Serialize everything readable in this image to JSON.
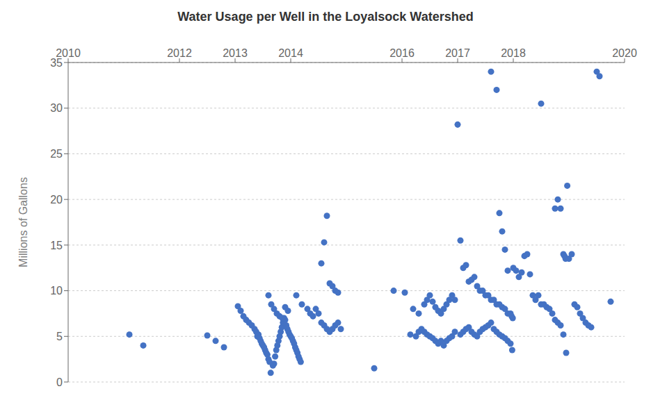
{
  "chart_data": {
    "type": "scatter",
    "title": "Water Usage per Well in the Loyalsock Watershed",
    "ylabel": "Millions of Gallons",
    "xlim": [
      2010,
      2020
    ],
    "ylim": [
      0,
      35
    ],
    "xticks": [
      2010,
      2012,
      2013,
      2014,
      2016,
      2017,
      2018,
      2020
    ],
    "yticks": [
      0,
      5,
      10,
      15,
      20,
      25,
      30,
      35
    ],
    "color": "#4472C4",
    "grid": "y",
    "x": [
      2011.1,
      2011.35,
      2012.5,
      2012.65,
      2012.8,
      2013.05,
      2013.1,
      2013.15,
      2013.2,
      2013.25,
      2013.3,
      2013.35,
      2013.38,
      2013.4,
      2013.42,
      2013.44,
      2013.46,
      2013.48,
      2013.5,
      2013.52,
      2013.54,
      2013.56,
      2013.58,
      2013.6,
      2013.62,
      2013.64,
      2013.68,
      2013.7,
      2013.72,
      2013.74,
      2013.76,
      2013.78,
      2013.8,
      2013.82,
      2013.84,
      2013.86,
      2013.88,
      2013.9,
      2013.92,
      2013.94,
      2013.96,
      2013.98,
      2014.0,
      2014.02,
      2014.04,
      2014.06,
      2014.08,
      2014.1,
      2014.12,
      2014.14,
      2014.16,
      2014.18,
      2013.6,
      2013.65,
      2013.7,
      2013.75,
      2013.8,
      2013.85,
      2013.9,
      2013.95,
      2014.1,
      2014.2,
      2014.3,
      2014.35,
      2014.4,
      2014.45,
      2014.5,
      2014.55,
      2014.6,
      2014.65,
      2014.7,
      2014.75,
      2014.8,
      2014.85,
      2014.55,
      2014.6,
      2014.65,
      2014.7,
      2014.75,
      2014.8,
      2014.85,
      2014.9,
      2015.5,
      2015.85,
      2016.05,
      2016.2,
      2016.3,
      2016.4,
      2016.45,
      2016.5,
      2016.55,
      2016.6,
      2016.65,
      2016.7,
      2016.75,
      2016.8,
      2016.85,
      2016.9,
      2016.95,
      2016.15,
      2016.25,
      2016.3,
      2016.35,
      2016.4,
      2016.45,
      2016.5,
      2016.55,
      2016.6,
      2016.65,
      2016.7,
      2016.75,
      2016.8,
      2016.85,
      2016.9,
      2016.95,
      2017.0,
      2017.05,
      2017.1,
      2017.15,
      2017.2,
      2017.25,
      2017.3,
      2017.35,
      2017.4,
      2017.45,
      2017.5,
      2017.55,
      2017.6,
      2017.65,
      2017.7,
      2017.75,
      2017.8,
      2017.85,
      2017.9,
      2017.95,
      2017.97,
      2017.99,
      2017.05,
      2017.1,
      2017.15,
      2017.2,
      2017.25,
      2017.3,
      2017.35,
      2017.4,
      2017.45,
      2017.5,
      2017.55,
      2017.6,
      2017.65,
      2017.7,
      2017.75,
      2017.8,
      2017.85,
      2017.9,
      2017.95,
      2017.98,
      2017.6,
      2017.7,
      2017.75,
      2017.8,
      2017.85,
      2017.9,
      2018.0,
      2018.05,
      2018.1,
      2018.15,
      2018.2,
      2018.25,
      2018.3,
      2018.35,
      2018.4,
      2018.45,
      2018.5,
      2018.55,
      2018.6,
      2018.65,
      2018.7,
      2018.75,
      2018.8,
      2018.85,
      2018.9,
      2018.95,
      2018.5,
      2018.75,
      2018.8,
      2018.85,
      2018.9,
      2018.92,
      2018.94,
      2018.97,
      2019.0,
      2019.05,
      2019.1,
      2019.15,
      2019.2,
      2019.25,
      2019.3,
      2019.35,
      2019.4,
      2019.5,
      2019.55,
      2019.75
    ],
    "values": [
      5.2,
      4.0,
      5.1,
      4.5,
      3.8,
      8.3,
      7.8,
      7.2,
      6.8,
      6.5,
      6.2,
      5.8,
      5.5,
      5.0,
      5.2,
      4.8,
      4.5,
      4.2,
      4.0,
      3.8,
      3.5,
      3.2,
      3.0,
      2.5,
      2.2,
      1.0,
      1.8,
      2.0,
      2.8,
      3.5,
      4.0,
      4.5,
      5.0,
      5.5,
      6.0,
      6.5,
      7.0,
      6.8,
      6.2,
      5.8,
      5.5,
      5.2,
      5.0,
      4.8,
      4.5,
      4.2,
      3.8,
      3.5,
      3.2,
      2.8,
      2.5,
      2.2,
      9.5,
      8.5,
      8.0,
      7.5,
      7.2,
      7.0,
      8.2,
      7.8,
      9.5,
      8.5,
      8.0,
      7.5,
      7.2,
      8.0,
      7.5,
      6.5,
      6.2,
      5.8,
      5.5,
      5.8,
      6.2,
      6.5,
      13.0,
      15.3,
      18.2,
      10.8,
      10.5,
      10.0,
      9.8,
      5.8,
      1.5,
      10.0,
      9.8,
      8.0,
      7.5,
      8.5,
      9.0,
      9.5,
      8.8,
      8.2,
      7.8,
      7.5,
      8.0,
      8.5,
      9.0,
      9.5,
      9.0,
      5.2,
      5.0,
      5.5,
      5.8,
      5.5,
      5.2,
      5.0,
      4.8,
      4.5,
      4.2,
      4.5,
      4.0,
      4.5,
      4.8,
      5.0,
      5.5,
      28.2,
      15.5,
      12.5,
      12.8,
      11.0,
      11.2,
      11.5,
      10.5,
      10.0,
      10.0,
      9.5,
      9.5,
      9.0,
      9.0,
      8.5,
      8.5,
      8.2,
      8.0,
      7.5,
      7.5,
      7.2,
      7.0,
      5.2,
      5.5,
      5.8,
      6.0,
      5.5,
      5.2,
      5.0,
      5.5,
      5.8,
      6.0,
      6.2,
      6.5,
      5.8,
      5.5,
      5.2,
      5.0,
      4.8,
      4.5,
      4.2,
      3.5,
      34.0,
      32.0,
      18.5,
      16.5,
      14.5,
      12.2,
      12.5,
      12.2,
      11.5,
      12.0,
      13.8,
      14.0,
      11.8,
      9.5,
      9.0,
      9.5,
      8.5,
      8.5,
      8.2,
      8.0,
      7.5,
      6.8,
      6.5,
      6.2,
      5.2,
      3.2,
      30.5,
      19.0,
      20.0,
      19.0,
      14.0,
      13.8,
      13.5,
      21.5,
      13.5,
      14.0,
      8.5,
      8.2,
      7.5,
      7.0,
      6.5,
      6.2,
      6.0,
      34.0,
      33.5,
      8.8
    ]
  }
}
